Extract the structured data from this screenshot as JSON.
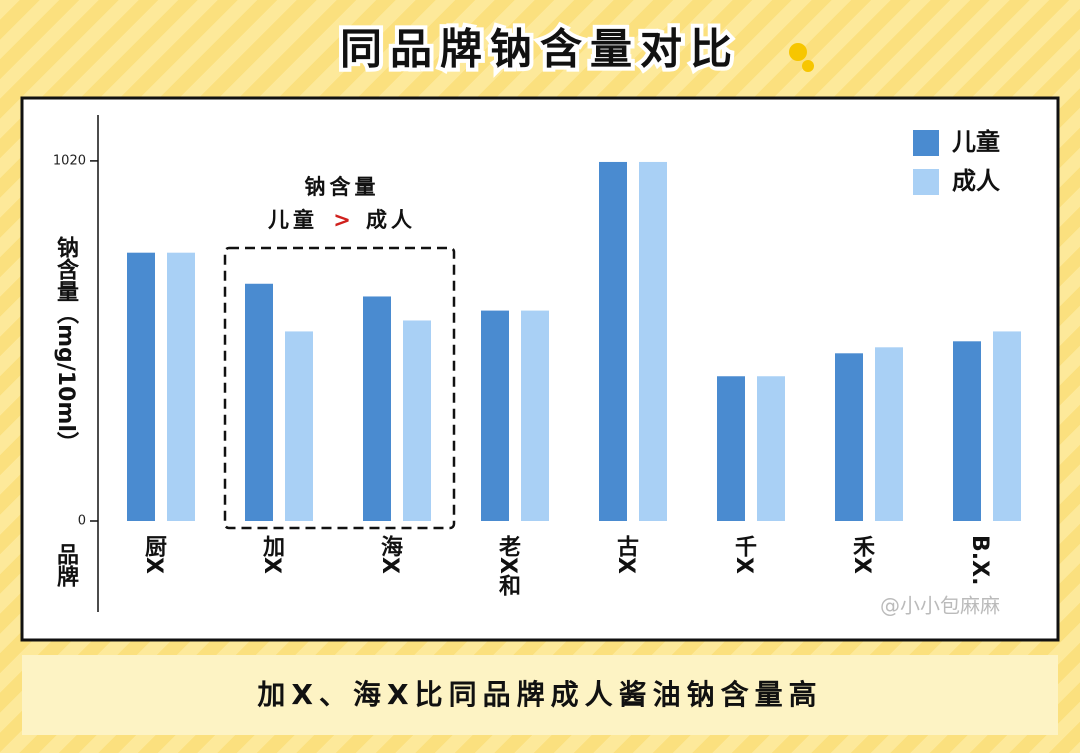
{
  "chart_data": {
    "type": "bar",
    "title": "同品牌钠含量对比",
    "y_label": "钠含量（mg/10ml）",
    "x_label": "品牌",
    "annotation": {
      "line1": "钠含量",
      "left": "儿童",
      "operator": ">",
      "right": "成人"
    },
    "categories": [
      "厨X",
      "加X",
      "海X",
      "老X和",
      "古X",
      "千X",
      "禾X",
      "B.X."
    ],
    "series": [
      {
        "name": "儿童",
        "color": "#4a8bd0",
        "values": [
          760,
          672,
          636,
          596,
          1017,
          410,
          475,
          509
        ]
      },
      {
        "name": "成人",
        "color": "#a9d0f5",
        "values": [
          760,
          537,
          568,
          596,
          1017,
          410,
          492,
          537
        ]
      }
    ],
    "ylim": [
      0,
      1150
    ],
    "yticks": [
      0,
      1020
    ],
    "legend": "top-right",
    "watermark": "@小小包麻麻",
    "footer": "加X、海X比同品牌成人酱油钠含量高"
  }
}
